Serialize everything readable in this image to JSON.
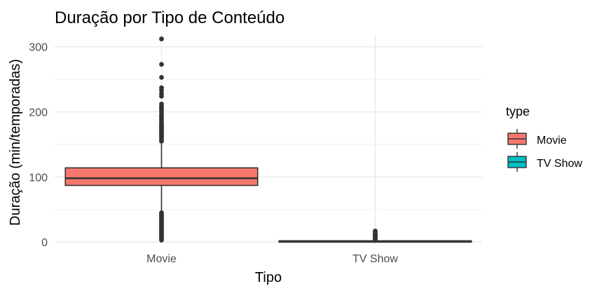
{
  "chart_data": {
    "type": "boxplot",
    "title": "Duração por Tipo de Conteúdo",
    "xlabel": "Tipo",
    "ylabel": "Duração (min/temporadas)",
    "categories": [
      "Movie",
      "TV Show"
    ],
    "yticks": [
      0,
      100,
      200,
      300
    ],
    "yticks_labels": [
      "0",
      "100",
      "200",
      "300"
    ],
    "ylim": [
      -3,
      318
    ],
    "grid": true,
    "legend": {
      "title": "type",
      "position": "right",
      "entries": [
        "Movie",
        "TV Show"
      ]
    },
    "colors": {
      "Movie": "#F8766D",
      "TV Show": "#00BFC4",
      "outline": "#333333",
      "grid": "#ebebeb"
    },
    "boxes": [
      {
        "category": "Movie",
        "min": 3,
        "q1": 87,
        "median": 98,
        "q3": 114,
        "max": 154,
        "outliers_high": [
          155,
          157,
          160,
          162,
          164,
          166,
          168,
          170,
          172,
          174,
          176,
          178,
          180,
          182,
          185,
          188,
          191,
          194,
          196,
          200,
          203,
          205,
          208,
          212,
          224,
          228,
          233,
          237,
          253,
          273,
          312
        ],
        "outliers_low": [
          3,
          5,
          7,
          9,
          11,
          13,
          15,
          17,
          19,
          21,
          23,
          25,
          27,
          29,
          31,
          33,
          35,
          37,
          39,
          41,
          43,
          45
        ]
      },
      {
        "category": "TV Show",
        "min": 1,
        "q1": 1,
        "median": 1,
        "q3": 2,
        "max": 3,
        "outliers_high": [
          4,
          5,
          6,
          7,
          8,
          9,
          10,
          11,
          12,
          13,
          15,
          17
        ],
        "outliers_low": []
      }
    ]
  }
}
